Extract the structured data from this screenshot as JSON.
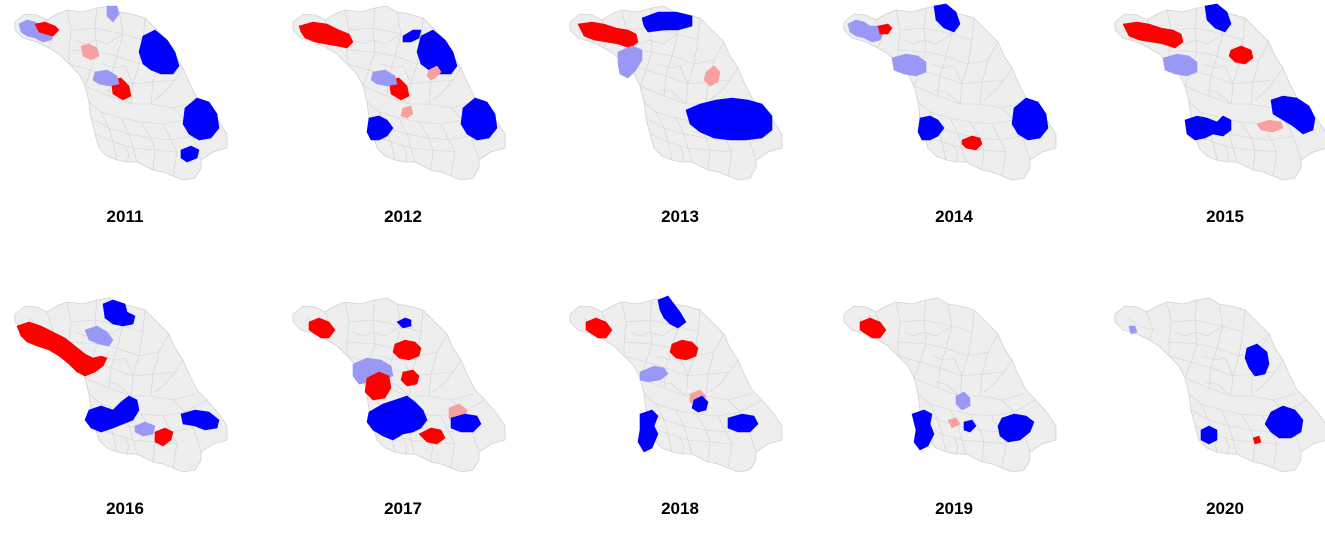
{
  "colors": {
    "base": "#eeeeee",
    "border": "#d2d2d2",
    "hot": "#ff0000",
    "warm": "#f7a0a0",
    "cool": "#9999f5",
    "cold": "#0000ff"
  },
  "maps": [
    {
      "year": "2011",
      "regions": [
        {
          "shape": "far-nw",
          "cls": "cold-light"
        },
        {
          "shape": "nw-red",
          "cls": "hot"
        },
        {
          "shape": "north-tip",
          "cls": "cold-light"
        },
        {
          "shape": "ne-coast",
          "cls": "cold"
        },
        {
          "shape": "mid-pink",
          "cls": "warm"
        },
        {
          "shape": "center-red",
          "cls": "hot"
        },
        {
          "shape": "center-lightblue",
          "cls": "cold-light"
        },
        {
          "shape": "east-coast",
          "cls": "cold"
        },
        {
          "shape": "south-small",
          "cls": "cold"
        }
      ]
    },
    {
      "year": "2012",
      "regions": [
        {
          "shape": "nw-red-large",
          "cls": "hot"
        },
        {
          "shape": "ne-coast",
          "cls": "cold"
        },
        {
          "shape": "north-small-blue",
          "cls": "cold"
        },
        {
          "shape": "mid-pink-2",
          "cls": "warm"
        },
        {
          "shape": "center-red",
          "cls": "hot"
        },
        {
          "shape": "center-lightblue",
          "cls": "cold-light"
        },
        {
          "shape": "sw-blue",
          "cls": "cold"
        },
        {
          "shape": "south-pink",
          "cls": "warm"
        },
        {
          "shape": "east-coast",
          "cls": "cold"
        }
      ]
    },
    {
      "year": "2013",
      "regions": [
        {
          "shape": "nw-red-wide",
          "cls": "hot"
        },
        {
          "shape": "north-blue",
          "cls": "cold"
        },
        {
          "shape": "west-lightblue",
          "cls": "cold-light"
        },
        {
          "shape": "mid-pink-3",
          "cls": "warm"
        },
        {
          "shape": "se-large-blue",
          "cls": "cold"
        }
      ]
    },
    {
      "year": "2014",
      "regions": [
        {
          "shape": "far-nw",
          "cls": "cold-light"
        },
        {
          "shape": "nw-red-small",
          "cls": "hot"
        },
        {
          "shape": "north-blue-2",
          "cls": "cold"
        },
        {
          "shape": "west-lightblue-2",
          "cls": "cold-light"
        },
        {
          "shape": "mid-blue-small",
          "cls": "cold"
        },
        {
          "shape": "sw-blue",
          "cls": "cold"
        },
        {
          "shape": "south-red",
          "cls": "hot"
        },
        {
          "shape": "east-coast",
          "cls": "cold"
        }
      ]
    },
    {
      "year": "2015",
      "regions": [
        {
          "shape": "nw-red-wide",
          "cls": "hot"
        },
        {
          "shape": "north-blue-2",
          "cls": "cold"
        },
        {
          "shape": "mid-red",
          "cls": "hot"
        },
        {
          "shape": "west-lightblue-2",
          "cls": "cold-light"
        },
        {
          "shape": "sw-blue-2",
          "cls": "cold"
        },
        {
          "shape": "south-pink-2",
          "cls": "warm"
        },
        {
          "shape": "east-coast-2",
          "cls": "cold"
        }
      ]
    },
    {
      "year": "2016",
      "regions": [
        {
          "shape": "nw-red-long",
          "cls": "hot"
        },
        {
          "shape": "north-blue-3",
          "cls": "cold"
        },
        {
          "shape": "mid-lightblue",
          "cls": "cold-light"
        },
        {
          "shape": "sw-blue-3",
          "cls": "cold"
        },
        {
          "shape": "south-lightblue",
          "cls": "cold-light"
        },
        {
          "shape": "south-red-2",
          "cls": "hot"
        },
        {
          "shape": "east-coast-3",
          "cls": "cold"
        }
      ]
    },
    {
      "year": "2017",
      "regions": [
        {
          "shape": "nw-red-small-2",
          "cls": "hot"
        },
        {
          "shape": "north-small-blue-2",
          "cls": "cold"
        },
        {
          "shape": "mid-red-2",
          "cls": "hot"
        },
        {
          "shape": "center-lightblue-2",
          "cls": "cold-light"
        },
        {
          "shape": "center-red-2",
          "cls": "hot"
        },
        {
          "shape": "mid-red-3",
          "cls": "hot"
        },
        {
          "shape": "sw-blue-large",
          "cls": "cold"
        },
        {
          "shape": "mid-pink-4",
          "cls": "warm"
        },
        {
          "shape": "south-red-3",
          "cls": "hot"
        },
        {
          "shape": "east-coast-4",
          "cls": "cold"
        }
      ]
    },
    {
      "year": "2018",
      "regions": [
        {
          "shape": "nw-red-small-2",
          "cls": "hot"
        },
        {
          "shape": "north-blue-4",
          "cls": "cold"
        },
        {
          "shape": "mid-red-2",
          "cls": "hot"
        },
        {
          "shape": "center-lightblue-3",
          "cls": "cold-light"
        },
        {
          "shape": "south-pink-3",
          "cls": "warm"
        },
        {
          "shape": "sw-blue-4",
          "cls": "cold"
        },
        {
          "shape": "south-blue-small",
          "cls": "cold"
        },
        {
          "shape": "east-coast-4",
          "cls": "cold"
        }
      ]
    },
    {
      "year": "2019",
      "regions": [
        {
          "shape": "nw-red-small-2",
          "cls": "hot"
        },
        {
          "shape": "center-lightblue-4",
          "cls": "cold-light"
        },
        {
          "shape": "south-pink-4",
          "cls": "warm"
        },
        {
          "shape": "sw-blue-5",
          "cls": "cold"
        },
        {
          "shape": "south-blue-small-2",
          "cls": "cold"
        },
        {
          "shape": "east-coast-5",
          "cls": "cold"
        }
      ]
    },
    {
      "year": "2020",
      "regions": [
        {
          "shape": "far-nw-small",
          "cls": "cold-light"
        },
        {
          "shape": "ne-blue-small",
          "cls": "cold"
        },
        {
          "shape": "sw-blue-small",
          "cls": "cold"
        },
        {
          "shape": "south-red-small",
          "cls": "hot"
        },
        {
          "shape": "east-coast-6",
          "cls": "cold"
        }
      ]
    }
  ]
}
